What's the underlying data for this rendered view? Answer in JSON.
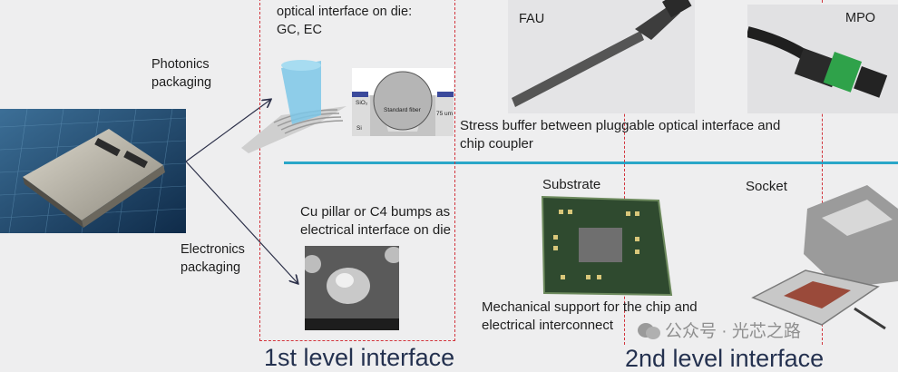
{
  "labels": {
    "photonics_packaging": [
      "Photonics",
      "packaging"
    ],
    "electronics_packaging": [
      "Electronics",
      "packaging"
    ],
    "optical_interface": [
      "optical interface on die:",
      "GC, EC"
    ],
    "fau": "FAU",
    "mpo": "MPO",
    "standard_fiber": "Standard fiber",
    "sio2": "SiO₂",
    "si": "Si",
    "dim_75um": "75 um",
    "stress_buffer": [
      "Stress buffer between pluggable optical interface and",
      "chip coupler"
    ],
    "cu_pillar": [
      "Cu pillar or C4 bumps as",
      "electrical interface on die"
    ],
    "substrate": "Substrate",
    "socket": "Socket",
    "mechanical_support": [
      "Mechanical support for the chip and",
      "electrical interconnect"
    ],
    "level1": "1st level interface",
    "level2": "2nd level interface"
  },
  "watermark": "公众号 · 光芯之路",
  "colors": {
    "divider": "#29a6c8",
    "dashed": "#d2343c",
    "title": "#24314f",
    "arrow": "#2b2f48"
  }
}
